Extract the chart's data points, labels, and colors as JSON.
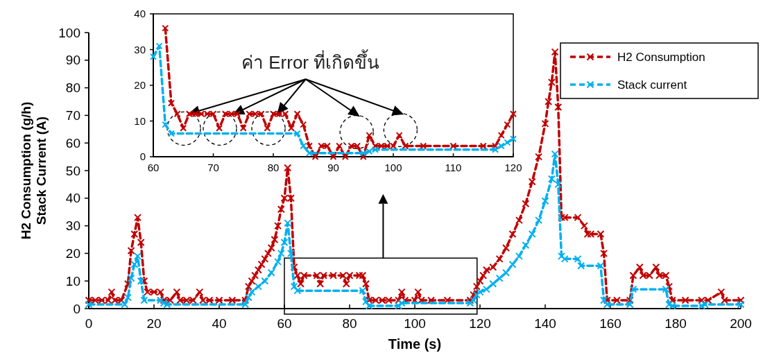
{
  "chart_data": [
    {
      "type": "line",
      "xlabel": "Time (s)",
      "ylabel": "H2 Consumption (g/h)\nStack Current (A)",
      "xlim": [
        0,
        200
      ],
      "ylim": [
        0,
        100
      ],
      "xticks": [
        0,
        20,
        40,
        60,
        80,
        100,
        120,
        140,
        160,
        180,
        200
      ],
      "yticks": [
        0,
        10,
        20,
        30,
        40,
        50,
        60,
        70,
        80,
        90,
        100
      ],
      "legend": "top right",
      "grid": false,
      "series": [
        {
          "name": "H2 Consumption",
          "color": "#c00000",
          "marker": "cross",
          "line_style": "dashed",
          "x": [
            0,
            2,
            4,
            6,
            7,
            8,
            10,
            12,
            13,
            14,
            15,
            16,
            17,
            18,
            20,
            22,
            23,
            25,
            27,
            28,
            30,
            32,
            34,
            35,
            37,
            40,
            44,
            48,
            49,
            50,
            51,
            52,
            53,
            54,
            55,
            56,
            57,
            58,
            59,
            60,
            61,
            62,
            63,
            64,
            65,
            66,
            70,
            71,
            72,
            75,
            78,
            79,
            80,
            83,
            84,
            85,
            86,
            88,
            90,
            92,
            95,
            96,
            97,
            100,
            101,
            102,
            105,
            110,
            117,
            118,
            119,
            120,
            121,
            122,
            124,
            126,
            128,
            130,
            132,
            134,
            136,
            138,
            140,
            141,
            142,
            143,
            144,
            145,
            146,
            150,
            152,
            153,
            154,
            157,
            158,
            159,
            162,
            166,
            167,
            169,
            170,
            172,
            174,
            175,
            177,
            178,
            179,
            183,
            188,
            190,
            194,
            195,
            200
          ],
          "values": [
            3,
            3,
            3,
            3,
            6,
            3,
            3,
            9,
            21,
            27,
            33,
            24,
            10,
            6,
            6,
            6,
            3,
            3,
            6,
            3,
            3,
            3,
            6,
            3,
            3,
            3,
            3,
            3,
            8,
            10,
            12,
            14,
            16,
            18,
            20,
            22,
            25,
            30,
            36,
            40,
            51,
            40,
            15,
            12,
            9,
            12,
            12,
            9,
            12,
            12,
            12,
            9,
            12,
            12,
            12,
            9,
            3,
            3,
            3,
            3,
            3,
            6,
            3,
            3,
            6,
            3,
            3,
            3,
            3,
            5,
            8,
            10,
            12,
            14,
            15,
            18,
            22,
            27,
            32,
            38,
            46,
            55,
            67,
            75,
            82,
            93,
            73,
            33,
            33,
            33,
            30,
            27,
            27,
            27,
            20,
            3,
            3,
            3,
            12,
            15,
            12,
            12,
            15,
            12,
            12,
            8,
            3,
            3,
            3,
            3,
            6,
            3,
            3
          ]
        },
        {
          "name": "Stack current",
          "color": "#00b0f0",
          "marker": "cross",
          "line_style": "dashed",
          "x": [
            0,
            11,
            12,
            13,
            14,
            15,
            16,
            17,
            22,
            23,
            24,
            48,
            49,
            50,
            52,
            54,
            56,
            58,
            59,
            60,
            61,
            62,
            63,
            64,
            84,
            85,
            86,
            95,
            96,
            117,
            118,
            119,
            120,
            122,
            124,
            126,
            128,
            130,
            132,
            134,
            136,
            138,
            140,
            142,
            143,
            144,
            145,
            146,
            150,
            151,
            157,
            158,
            159,
            166,
            167,
            177,
            178,
            179,
            188,
            189,
            200
          ],
          "values": [
            1.5,
            1.5,
            4,
            11,
            16,
            19,
            10,
            3,
            3,
            2,
            1.5,
            1.5,
            4,
            6,
            8,
            10,
            13,
            17,
            20,
            24,
            31,
            20,
            8,
            6.5,
            6.5,
            2.5,
            1,
            1,
            2,
            2,
            3,
            5,
            6,
            7,
            9,
            11,
            13,
            16,
            19,
            23,
            27,
            32,
            39,
            47,
            56,
            45,
            19,
            18,
            18,
            15.5,
            15.5,
            3,
            1.5,
            1.5,
            7,
            7,
            1.5,
            1,
            1,
            1.5,
            1.5
          ]
        }
      ]
    },
    {
      "type": "line",
      "xlim": [
        60,
        120
      ],
      "ylim": [
        0,
        40
      ],
      "xticks": [
        60,
        70,
        80,
        90,
        100,
        110,
        120
      ],
      "yticks": [
        0,
        10,
        20,
        30,
        40
      ],
      "grid": false,
      "annotations": [
        "ค่า Error ที่เกิดขึ้น"
      ],
      "series": [
        {
          "color": "#c00000",
          "marker": "cross",
          "line_style": "dashed",
          "x": [
            62,
            63,
            64,
            65,
            66,
            67,
            68,
            69,
            70,
            71,
            72,
            73,
            74,
            75,
            76,
            77,
            78,
            79,
            80,
            81,
            82,
            83,
            84,
            85,
            86,
            87,
            88,
            89,
            90,
            91,
            92,
            93,
            94,
            95,
            96,
            97,
            98,
            99,
            100,
            101,
            102,
            105,
            110,
            115,
            117,
            118,
            119,
            120
          ],
          "values": [
            36,
            15,
            12,
            8,
            12,
            12,
            12,
            12,
            12,
            8,
            12,
            12,
            12,
            8,
            12,
            12,
            12,
            8,
            12,
            12,
            12,
            8,
            12,
            9,
            3,
            0,
            3,
            3,
            0,
            3,
            0,
            3,
            3,
            0,
            6,
            3,
            3,
            3,
            3,
            6,
            3,
            3,
            3,
            3,
            3,
            6,
            9,
            12
          ]
        },
        {
          "color": "#00b0f0",
          "marker": "cross",
          "line_style": "dashed",
          "x": [
            60,
            61,
            62,
            63,
            84,
            85,
            86,
            95,
            96,
            97,
            117,
            118,
            119,
            120
          ],
          "values": [
            28,
            31,
            9,
            6.5,
            6.5,
            3,
            1,
            1,
            1.5,
            2,
            2,
            3,
            4,
            5
          ]
        }
      ]
    }
  ]
}
